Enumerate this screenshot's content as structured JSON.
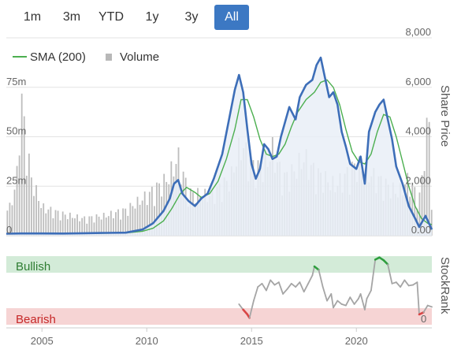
{
  "range_selector": {
    "buttons": [
      "1m",
      "3m",
      "YTD",
      "1y",
      "3y",
      "All"
    ],
    "active": "All"
  },
  "chart_data": [
    {
      "type": "line",
      "title": "",
      "legend": [
        "SMA (200)",
        "Volume"
      ],
      "legend_placement": "top-left",
      "grid": true,
      "x_ticks": [
        "2005",
        "2010",
        "2015",
        "2020"
      ],
      "x_range": [
        2003.3,
        2023.6
      ],
      "right_axis": {
        "label": "Share Price",
        "ticks": [
          "0.00",
          "2,000",
          "4,000",
          "6,000",
          "8,000"
        ],
        "range": [
          0,
          8000
        ]
      },
      "left_axis": {
        "label": "",
        "ticks": [
          "0",
          "25m",
          "50m",
          "75m"
        ],
        "range": [
          0,
          120
        ]
      },
      "colors": {
        "price": "#3d6eb8",
        "sma": "#4caf50",
        "volume": "#bdbdbd",
        "area": "#e9eef7",
        "grid": "#e3e3e3"
      },
      "series": [
        {
          "name": "",
          "values": [
            [
              2003.3,
              80
            ],
            [
              2004,
              90
            ],
            [
              2005,
              90
            ],
            [
              2006,
              85
            ],
            [
              2007,
              100
            ],
            [
              2008,
              110
            ],
            [
              2009,
              120
            ],
            [
              2009.8,
              250
            ],
            [
              2010.3,
              500
            ],
            [
              2010.8,
              1000
            ],
            [
              2011.1,
              1500
            ],
            [
              2011.3,
              2100
            ],
            [
              2011.5,
              2250
            ],
            [
              2011.7,
              1700
            ],
            [
              2012,
              1400
            ],
            [
              2012.3,
              1200
            ],
            [
              2012.6,
              1500
            ],
            [
              2012.9,
              1700
            ],
            [
              2013.2,
              2300
            ],
            [
              2013.6,
              3300
            ],
            [
              2013.9,
              4600
            ],
            [
              2014.2,
              5900
            ],
            [
              2014.4,
              6500
            ],
            [
              2014.6,
              5800
            ],
            [
              2014.8,
              4300
            ],
            [
              2015,
              2900
            ],
            [
              2015.2,
              2300
            ],
            [
              2015.4,
              2700
            ],
            [
              2015.6,
              3700
            ],
            [
              2015.8,
              3500
            ],
            [
              2016,
              3100
            ],
            [
              2016.2,
              3200
            ],
            [
              2016.4,
              4000
            ],
            [
              2016.8,
              5200
            ],
            [
              2017.1,
              4700
            ],
            [
              2017.3,
              5600
            ],
            [
              2017.6,
              6100
            ],
            [
              2017.9,
              6300
            ],
            [
              2018.1,
              6900
            ],
            [
              2018.3,
              7200
            ],
            [
              2018.5,
              6400
            ],
            [
              2018.7,
              5600
            ],
            [
              2018.9,
              5800
            ],
            [
              2019.1,
              5300
            ],
            [
              2019.3,
              4200
            ],
            [
              2019.5,
              3600
            ],
            [
              2019.7,
              2900
            ],
            [
              2020,
              2700
            ],
            [
              2020.2,
              3200
            ],
            [
              2020.4,
              2100
            ],
            [
              2020.6,
              4200
            ],
            [
              2020.9,
              5000
            ],
            [
              2021.1,
              5300
            ],
            [
              2021.3,
              5500
            ],
            [
              2021.5,
              4700
            ],
            [
              2021.7,
              3900
            ],
            [
              2021.9,
              2800
            ],
            [
              2022.2,
              2100
            ],
            [
              2022.5,
              1200
            ],
            [
              2022.8,
              700
            ],
            [
              2023,
              350
            ],
            [
              2023.3,
              800
            ],
            [
              2023.6,
              250
            ]
          ]
        },
        {
          "name": "SMA (200)",
          "values": [
            [
              2003.3,
              80
            ],
            [
              2006,
              90
            ],
            [
              2008,
              100
            ],
            [
              2009,
              110
            ],
            [
              2009.8,
              180
            ],
            [
              2010.3,
              300
            ],
            [
              2010.8,
              600
            ],
            [
              2011.2,
              1100
            ],
            [
              2011.6,
              1700
            ],
            [
              2011.9,
              1950
            ],
            [
              2012.3,
              1750
            ],
            [
              2012.6,
              1550
            ],
            [
              2013,
              1700
            ],
            [
              2013.4,
              2200
            ],
            [
              2013.8,
              3100
            ],
            [
              2014.2,
              4300
            ],
            [
              2014.5,
              5500
            ],
            [
              2014.8,
              5500
            ],
            [
              2015.1,
              4800
            ],
            [
              2015.4,
              3900
            ],
            [
              2015.7,
              3300
            ],
            [
              2016,
              3200
            ],
            [
              2016.3,
              3300
            ],
            [
              2016.6,
              3700
            ],
            [
              2016.9,
              4400
            ],
            [
              2017.2,
              5000
            ],
            [
              2017.6,
              5500
            ],
            [
              2018,
              5800
            ],
            [
              2018.3,
              6200
            ],
            [
              2018.6,
              6300
            ],
            [
              2018.9,
              6000
            ],
            [
              2019.2,
              5300
            ],
            [
              2019.5,
              4300
            ],
            [
              2019.8,
              3400
            ],
            [
              2020.1,
              3000
            ],
            [
              2020.4,
              2900
            ],
            [
              2020.7,
              3300
            ],
            [
              2021,
              4200
            ],
            [
              2021.3,
              4900
            ],
            [
              2021.6,
              4800
            ],
            [
              2021.9,
              4000
            ],
            [
              2022.2,
              3000
            ],
            [
              2022.5,
              2000
            ],
            [
              2022.8,
              1200
            ],
            [
              2023.1,
              700
            ],
            [
              2023.4,
              500
            ],
            [
              2023.6,
              450
            ]
          ]
        },
        {
          "name": "Volume",
          "values": [
            [
              2003.5,
              20
            ],
            [
              2003.8,
              40
            ],
            [
              2004,
              100
            ],
            [
              2004.2,
              70
            ],
            [
              2004.5,
              40
            ],
            [
              2005,
              20
            ],
            [
              2006,
              15
            ],
            [
              2007,
              12
            ],
            [
              2008,
              14
            ],
            [
              2009,
              18
            ],
            [
              2010,
              28
            ],
            [
              2011,
              40
            ],
            [
              2011.5,
              55
            ],
            [
              2012,
              30
            ],
            [
              2013,
              28
            ],
            [
              2014,
              40
            ],
            [
              2014.5,
              65
            ],
            [
              2015,
              50
            ],
            [
              2015.5,
              45
            ],
            [
              2016,
              60
            ],
            [
              2016.5,
              40
            ],
            [
              2017,
              45
            ],
            [
              2017.5,
              55
            ],
            [
              2018,
              45
            ],
            [
              2019,
              35
            ],
            [
              2020,
              50
            ],
            [
              2021,
              40
            ],
            [
              2022,
              30
            ],
            [
              2022.5,
              40
            ],
            [
              2023,
              25
            ],
            [
              2023.5,
              90
            ]
          ]
        }
      ]
    },
    {
      "type": "line",
      "title": "",
      "right_axis": {
        "label": "StockRank",
        "ticks": [
          "0"
        ]
      },
      "zones": [
        "Bullish",
        "Bearish"
      ],
      "colors": {
        "line": "#a5a5a5",
        "bullish_band": "#d3ebd8",
        "bearish_band": "#f6d4d4",
        "bullish_text": "#2e7d32",
        "bearish_text": "#c62828",
        "bull_mark": "#2e9e3e",
        "bear_mark": "#d94646"
      },
      "x_range": [
        2003.3,
        2023.6
      ],
      "y_range": [
        0,
        100
      ],
      "series": [
        {
          "name": "",
          "values": [
            [
              2014.4,
              30
            ],
            [
              2014.6,
              22
            ],
            [
              2014.8,
              15
            ],
            [
              2014.9,
              10
            ],
            [
              2015.1,
              35
            ],
            [
              2015.3,
              55
            ],
            [
              2015.5,
              60
            ],
            [
              2015.7,
              50
            ],
            [
              2015.9,
              65
            ],
            [
              2016.1,
              58
            ],
            [
              2016.3,
              62
            ],
            [
              2016.5,
              45
            ],
            [
              2016.7,
              52
            ],
            [
              2016.9,
              60
            ],
            [
              2017.1,
              55
            ],
            [
              2017.3,
              62
            ],
            [
              2017.5,
              48
            ],
            [
              2017.7,
              60
            ],
            [
              2017.9,
              72
            ],
            [
              2018,
              85
            ],
            [
              2018.2,
              80
            ],
            [
              2018.4,
              55
            ],
            [
              2018.6,
              35
            ],
            [
              2018.8,
              45
            ],
            [
              2018.9,
              25
            ],
            [
              2019.1,
              35
            ],
            [
              2019.3,
              30
            ],
            [
              2019.5,
              28
            ],
            [
              2019.7,
              40
            ],
            [
              2019.9,
              30
            ],
            [
              2020.1,
              38
            ],
            [
              2020.2,
              45
            ],
            [
              2020.4,
              22
            ],
            [
              2020.5,
              38
            ],
            [
              2020.7,
              50
            ],
            [
              2020.9,
              95
            ],
            [
              2021.1,
              98
            ],
            [
              2021.3,
              94
            ],
            [
              2021.5,
              88
            ],
            [
              2021.7,
              60
            ],
            [
              2021.9,
              62
            ],
            [
              2022.1,
              55
            ],
            [
              2022.3,
              65
            ],
            [
              2022.5,
              57
            ],
            [
              2022.7,
              58
            ],
            [
              2022.9,
              62
            ],
            [
              2023,
              15
            ],
            [
              2023.2,
              18
            ],
            [
              2023.4,
              28
            ],
            [
              2023.6,
              26
            ]
          ]
        }
      ]
    }
  ]
}
